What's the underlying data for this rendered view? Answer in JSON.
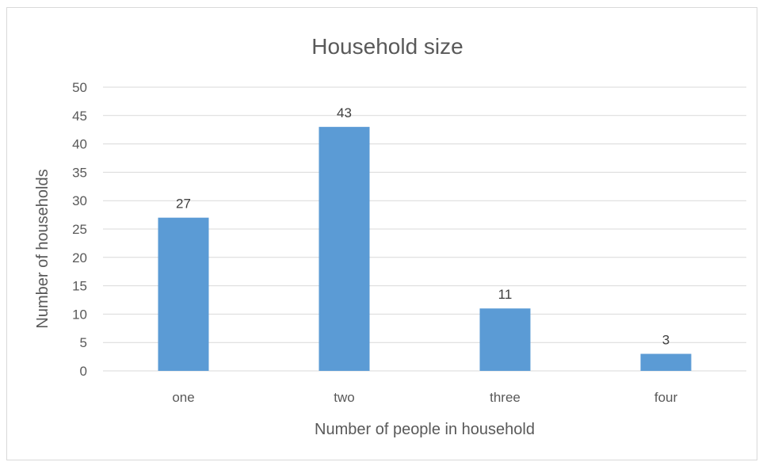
{
  "chart_data": {
    "type": "bar",
    "title": "Household size",
    "xlabel": "Number of people in household",
    "ylabel": "Number of households",
    "categories": [
      "one",
      "two",
      "three",
      "four"
    ],
    "values": [
      27,
      43,
      11,
      3
    ],
    "data_labels": [
      "27",
      "43",
      "11",
      "3"
    ],
    "ylim": [
      0,
      50
    ],
    "yticks": [
      0,
      5,
      10,
      15,
      20,
      25,
      30,
      35,
      40,
      45,
      50
    ],
    "ytick_labels": [
      "0",
      "5",
      "10",
      "15",
      "20",
      "25",
      "30",
      "35",
      "40",
      "45",
      "50"
    ],
    "grid": true,
    "legend": "none",
    "bar_color": "#5b9bd5"
  }
}
